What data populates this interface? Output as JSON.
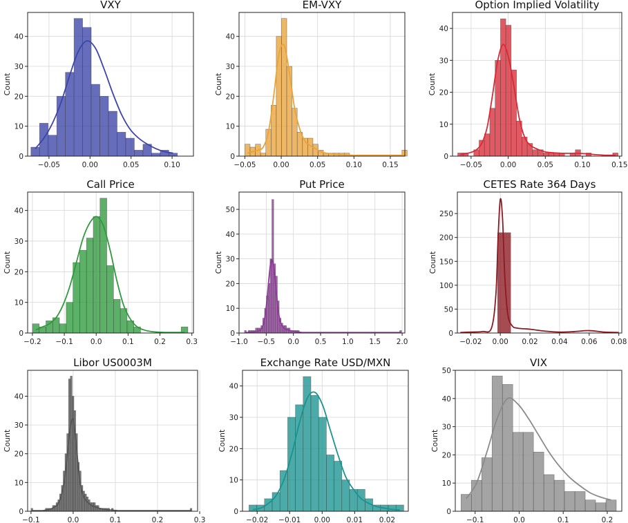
{
  "chart_data": [
    {
      "type": "histogram",
      "title": "VXY",
      "ylabel": "Count",
      "color": "#3b44a8",
      "bin_start": -0.072,
      "bin_width": 0.0105,
      "counts": [
        3,
        11,
        7,
        20,
        28,
        46,
        43,
        24,
        20,
        15,
        8,
        6,
        2,
        4,
        1,
        2,
        1
      ],
      "kde": [
        2.5,
        6,
        11,
        18,
        27,
        35,
        38.5,
        36,
        29,
        21,
        14,
        9,
        6,
        4,
        2.5,
        1.5,
        1
      ],
      "xlim": [
        -0.076,
        0.126
      ],
      "ylim": [
        0,
        48
      ],
      "xticks": [
        -0.05,
        0,
        0.05,
        0.1
      ],
      "xtick_labels": [
        "−0.05",
        "0.00",
        "0.05",
        "0.10"
      ],
      "yticks": [
        0,
        10,
        20,
        30,
        40
      ],
      "ytick_labels": [
        "0",
        "10",
        "20",
        "30",
        "40"
      ]
    },
    {
      "type": "histogram",
      "title": "EM-VXY",
      "ylabel": "Count",
      "color": "#e8a33b",
      "bin_start": -0.05,
      "bin_width": 0.0072,
      "counts": [
        4,
        3,
        4,
        1,
        9,
        17,
        40,
        46,
        30,
        16,
        8,
        6,
        6,
        4,
        2,
        1,
        1,
        1,
        1,
        1,
        0,
        0,
        0,
        0,
        0,
        0,
        0,
        0,
        0,
        0,
        2
      ],
      "kde": [
        1,
        1.5,
        2,
        3,
        8,
        20,
        34,
        37,
        28,
        16,
        9,
        5,
        3.5,
        2.5,
        1.5,
        1,
        0.8,
        0.6,
        0.5,
        0.4,
        0.3,
        0.3,
        0.3,
        0.3,
        0.3,
        0.3,
        0.3,
        0.3,
        0.3,
        0.3,
        0.3
      ],
      "xlim": [
        -0.058,
        0.17
      ],
      "ylim": [
        0,
        48
      ],
      "xticks": [
        -0.05,
        0,
        0.05,
        0.1,
        0.15
      ],
      "xtick_labels": [
        "−0.05",
        "0.00",
        "0.05",
        "0.10",
        "0.15"
      ],
      "yticks": [
        0,
        10,
        20,
        30,
        40
      ],
      "ytick_labels": [
        "0",
        "10",
        "20",
        "30",
        "40"
      ]
    },
    {
      "type": "histogram",
      "title": "Option Implied Volatility",
      "ylabel": "Count",
      "color": "#d92a36",
      "bin_start": -0.068,
      "bin_width": 0.0072,
      "counts": [
        1,
        1,
        0,
        2,
        5,
        7,
        15,
        30,
        43,
        41,
        27,
        11,
        6,
        4,
        2,
        2,
        1,
        1,
        1,
        1,
        0,
        1,
        2,
        0,
        1,
        0,
        0,
        0,
        0,
        1
      ],
      "kde": [
        0.5,
        0.8,
        1.2,
        2,
        4,
        9,
        19,
        30,
        35,
        31,
        22,
        12,
        6,
        3.5,
        2.5,
        1.8,
        1.3,
        1.1,
        1,
        0.9,
        0.9,
        0.9,
        0.9,
        0.8,
        0.7,
        0.5,
        0.4,
        0.3,
        0.3,
        0.3
      ],
      "xlim": [
        -0.075,
        0.153
      ],
      "ylim": [
        0,
        45
      ],
      "xticks": [
        -0.05,
        0,
        0.05,
        0.1,
        0.15
      ],
      "xtick_labels": [
        "−0.05",
        "0.00",
        "0.05",
        "0.10",
        "0.15"
      ],
      "yticks": [
        0,
        10,
        20,
        30,
        40
      ],
      "ytick_labels": [
        "0",
        "10",
        "20",
        "30",
        "40"
      ]
    },
    {
      "type": "histogram",
      "title": "Call Price",
      "ylabel": "Count",
      "color": "#2f9a3c",
      "bin_start": -0.2,
      "bin_width": 0.0212,
      "counts": [
        3,
        2,
        4,
        5,
        3,
        10,
        23,
        27,
        31,
        38,
        44,
        22,
        11,
        8,
        4,
        2,
        0,
        0,
        0,
        0,
        0,
        0,
        2
      ],
      "kde": [
        1,
        2,
        3,
        5,
        9,
        15,
        23,
        31,
        36,
        38,
        35,
        27,
        17,
        9,
        4.5,
        2,
        1,
        0.5,
        0.3,
        0.2,
        0.2,
        0.2,
        0.2
      ],
      "xlim": [
        -0.215,
        0.305
      ],
      "ylim": [
        0,
        46
      ],
      "xticks": [
        -0.2,
        -0.1,
        0,
        0.1,
        0.2,
        0.3
      ],
      "xtick_labels": [
        "−0.2",
        "−0.1",
        "0.0",
        "0.1",
        "0.2",
        "0.3"
      ],
      "yticks": [
        0,
        10,
        20,
        30,
        40
      ],
      "ytick_labels": [
        "0",
        "10",
        "20",
        "30",
        "40"
      ]
    },
    {
      "type": "histogram",
      "title": "Put Price",
      "ylabel": "Count",
      "color": "#8e3a9a",
      "bin_start": -0.9,
      "bin_width": 0.0336,
      "counts": [
        1,
        0,
        1,
        1,
        1,
        1,
        2,
        2,
        2,
        3,
        6,
        10,
        15,
        20,
        30,
        54,
        28,
        23,
        13,
        6,
        4,
        3,
        3,
        2,
        2,
        1,
        1,
        1,
        1,
        1,
        0,
        0,
        0,
        0,
        0,
        0,
        0,
        0,
        0,
        0,
        0,
        0,
        0,
        0,
        0,
        0,
        0,
        0,
        0,
        0,
        0,
        0,
        0,
        0,
        0,
        0,
        0,
        0,
        0,
        0,
        0,
        0,
        0,
        0,
        0,
        0,
        0,
        0,
        0,
        0,
        0,
        0,
        0,
        0,
        0,
        0,
        0,
        0,
        0,
        0,
        0,
        0,
        0,
        0,
        0,
        1
      ],
      "kde": [
        0.2,
        0.2,
        0.3,
        0.3,
        0.4,
        0.5,
        0.6,
        0.8,
        1,
        2,
        4,
        8,
        15,
        23,
        29,
        29,
        24,
        16,
        9,
        5,
        3,
        2,
        1.6,
        1.3,
        1,
        0.9,
        0.8,
        0.7,
        0.5,
        0.4,
        0.3,
        0.2,
        0.2,
        0.2,
        0.2,
        0.2,
        0.2,
        0.2,
        0.2,
        0.2,
        0.2,
        0.2,
        0.2,
        0.2,
        0.2,
        0.2,
        0.2,
        0.2,
        0.2,
        0.2,
        0.2,
        0.2,
        0.2,
        0.2,
        0.2,
        0.2,
        0.2,
        0.2,
        0.2,
        0.2,
        0.2,
        0.2,
        0.2,
        0.2,
        0.2,
        0.2,
        0.2,
        0.2,
        0.2,
        0.2,
        0.2,
        0.2,
        0.2,
        0.2,
        0.2,
        0.2,
        0.2,
        0.2,
        0.2,
        0.2,
        0.2,
        0.2,
        0.2,
        0.2,
        0.2,
        0.2
      ],
      "xlim": [
        -1.0,
        2.05
      ],
      "ylim": [
        0,
        57
      ],
      "xticks": [
        -1,
        -0.5,
        0,
        0.5,
        1,
        1.5,
        2
      ],
      "xtick_labels": [
        "−1.0",
        "−0.5",
        "0.0",
        "0.5",
        "1.0",
        "1.5",
        "2.0"
      ],
      "yticks": [
        0,
        10,
        20,
        30,
        40,
        50
      ],
      "ytick_labels": [
        "0",
        "10",
        "20",
        "30",
        "40",
        "50"
      ]
    },
    {
      "type": "histogram",
      "title": "CETES Rate 364 Days",
      "ylabel": "Count",
      "color": "#8c1a22",
      "bin_start": -0.0018,
      "bin_width": 0.0088,
      "counts": [
        210
      ],
      "kde_x": [
        -0.027,
        -0.02,
        -0.012,
        -0.006,
        -0.003,
        -0.0015,
        0,
        0.0015,
        0.003,
        0.005,
        0.008,
        0.012,
        0.02,
        0.03,
        0.04,
        0.05,
        0.06,
        0.07,
        0.08
      ],
      "kde": [
        1,
        2,
        3,
        10,
        80,
        200,
        280,
        240,
        120,
        40,
        15,
        10,
        8,
        4,
        2,
        3,
        5,
        2,
        1
      ],
      "xlim": [
        -0.029,
        0.082
      ],
      "ylim": [
        0,
        295
      ],
      "xticks": [
        -0.02,
        0,
        0.02,
        0.04,
        0.06,
        0.08
      ],
      "xtick_labels": [
        "−0.02",
        "0.00",
        "0.02",
        "0.04",
        "0.06",
        "0.08"
      ],
      "yticks": [
        0,
        50,
        100,
        150,
        200,
        250
      ],
      "ytick_labels": [
        "0",
        "50",
        "100",
        "150",
        "200",
        "250"
      ]
    },
    {
      "type": "histogram",
      "title": "Libor US0003M",
      "ylabel": "Count",
      "color": "#555555",
      "bin_start": -0.1,
      "bin_width": 0.00424,
      "counts": [
        1,
        0,
        0,
        0,
        0,
        0,
        0,
        0,
        1,
        1,
        1,
        1,
        2,
        2,
        3,
        4,
        6,
        9,
        14,
        20,
        27,
        46,
        47,
        40,
        35,
        27,
        17,
        14,
        9,
        7,
        6,
        5,
        4,
        3,
        3,
        3,
        2,
        2,
        1,
        1,
        1,
        1,
        1,
        1,
        0,
        1,
        0,
        0,
        0,
        0,
        0,
        0,
        0,
        0,
        0,
        0,
        0,
        0,
        0,
        0,
        0,
        0,
        0,
        0,
        0,
        0,
        0,
        0,
        0,
        0,
        0,
        0,
        0,
        0,
        0,
        0,
        0,
        0,
        0,
        0,
        0,
        0,
        0,
        0,
        0,
        0,
        0,
        0,
        0,
        1
      ],
      "kde": [
        0.2,
        0.2,
        0.2,
        0.2,
        0.2,
        0.2,
        0.2,
        0.3,
        0.4,
        0.5,
        0.7,
        0.9,
        1.2,
        1.6,
        2,
        3,
        4.5,
        7,
        10,
        15,
        21,
        27,
        31,
        32,
        28,
        22,
        15,
        10,
        7,
        5,
        4,
        3.2,
        2.6,
        2.1,
        1.8,
        1.6,
        1.4,
        1.2,
        1,
        0.9,
        0.8,
        0.7,
        0.6,
        0.5,
        0.4,
        0.4,
        0.3,
        0.3,
        0.2,
        0.2,
        0.2,
        0.2,
        0.2,
        0.2,
        0.2,
        0.2,
        0.2,
        0.2,
        0.2,
        0.2,
        0.2,
        0.2,
        0.2,
        0.2,
        0.2,
        0.2,
        0.2,
        0.2,
        0.2,
        0.2,
        0.2,
        0.2,
        0.2,
        0.2,
        0.2,
        0.2,
        0.2,
        0.2,
        0.2,
        0.2,
        0.2,
        0.2,
        0.2,
        0.2,
        0.2,
        0.2,
        0.2,
        0.2,
        0.2,
        0.3
      ],
      "xlim": [
        -0.108,
        0.295
      ],
      "ylim": [
        0,
        49
      ],
      "xticks": [
        -0.1,
        0,
        0.1,
        0.2,
        0.3
      ],
      "xtick_labels": [
        "−0.1",
        "0.0",
        "0.1",
        "0.2",
        "0.3"
      ],
      "yticks": [
        0,
        10,
        20,
        30,
        40
      ],
      "ytick_labels": [
        "0",
        "10",
        "20",
        "30",
        "40"
      ]
    },
    {
      "type": "histogram",
      "title": "Exchange Rate USD/MXN",
      "ylabel": "Count",
      "color": "#1a938f",
      "bin_start": -0.0225,
      "bin_width": 0.00238,
      "counts": [
        2,
        2,
        4,
        6,
        13,
        30,
        34,
        43,
        37,
        30,
        18,
        16,
        10,
        7,
        7,
        4,
        2,
        2,
        2,
        2
      ],
      "kde": [
        0.5,
        1,
        2.5,
        5,
        10,
        18,
        28,
        36,
        38,
        34,
        26,
        18,
        11,
        7,
        4,
        2.5,
        1.5,
        1,
        0.6,
        0.4
      ],
      "xlim": [
        -0.0245,
        0.0265
      ],
      "ylim": [
        0,
        45
      ],
      "xticks": [
        -0.02,
        -0.01,
        0,
        0.01,
        0.02
      ],
      "xtick_labels": [
        "−0.02",
        "−0.01",
        "0.00",
        "0.01",
        "0.02"
      ],
      "yticks": [
        0,
        10,
        20,
        30,
        40
      ],
      "ytick_labels": [
        "0",
        "10",
        "20",
        "30",
        "40"
      ]
    },
    {
      "type": "histogram",
      "title": "VIX",
      "ylabel": "Count",
      "color": "#8a8a8a",
      "bin_start": -0.132,
      "bin_width": 0.0235,
      "counts": [
        6,
        11,
        19,
        48,
        45,
        28,
        28,
        21,
        13,
        11,
        7,
        7,
        4,
        3,
        4
      ],
      "kde": [
        4.5,
        10,
        21,
        33,
        40,
        38,
        33,
        27,
        21,
        16,
        12,
        9,
        6.5,
        5,
        4
      ],
      "xlim": [
        -0.145,
        0.233
      ],
      "ylim": [
        0,
        50
      ],
      "xticks": [
        -0.1,
        0,
        0.1,
        0.2
      ],
      "xtick_labels": [
        "−0.1",
        "0.0",
        "0.1",
        "0.2"
      ],
      "yticks": [
        0,
        10,
        20,
        30,
        40,
        50
      ],
      "ytick_labels": [
        "0",
        "10",
        "20",
        "30",
        "40",
        "50"
      ]
    }
  ]
}
